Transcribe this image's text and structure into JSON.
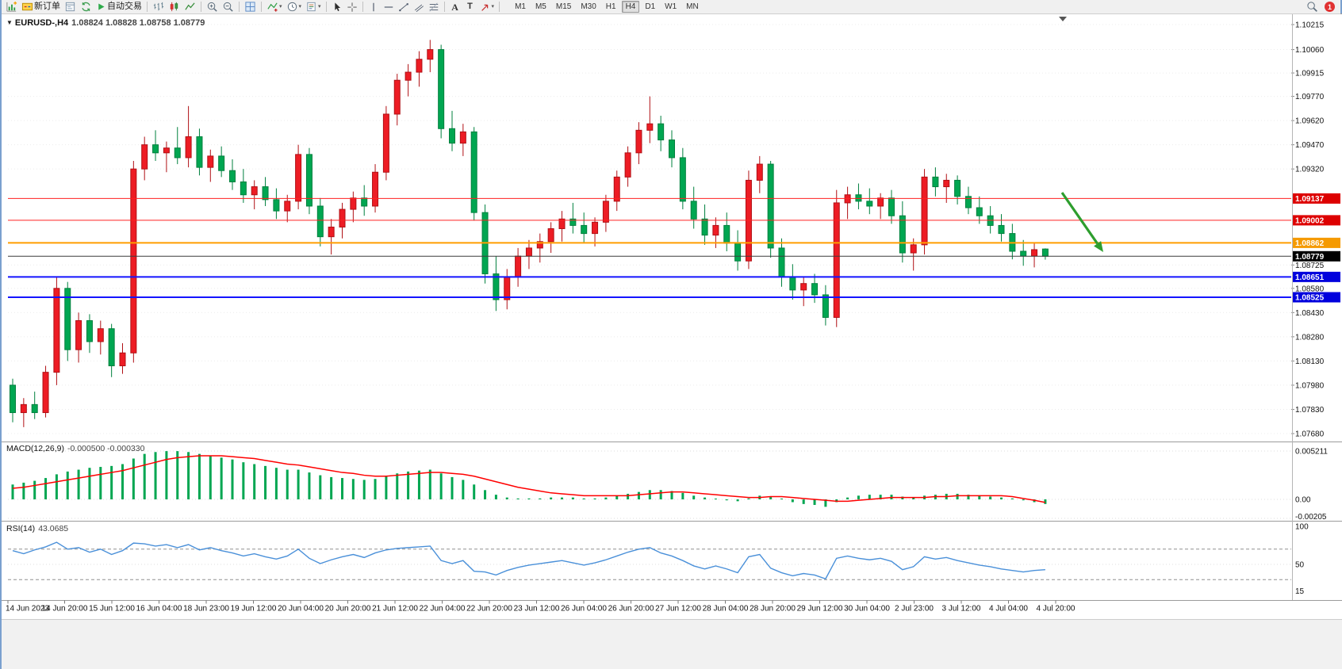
{
  "toolbar": {
    "new_order_label": "新订单",
    "autotrading_label": "自动交易",
    "timeframes": [
      "M1",
      "M5",
      "M15",
      "M30",
      "H1",
      "H4",
      "D1",
      "W1",
      "MN"
    ],
    "active_timeframe": "H4",
    "notification_count": "1"
  },
  "chart": {
    "symbol_title": "EURUSD-,H4",
    "ohlc_text": "1.08824 1.08828 1.08758 1.08779",
    "macd_label": "MACD(12,26,9)",
    "macd_values": "-0.000500 -0.000330",
    "rsi_label": "RSI(14)",
    "rsi_value": "43.0685"
  },
  "chart_data": {
    "type": "candlestick",
    "symbol": "EURUSD",
    "timeframe": "H4",
    "up_color": "#ed1c24",
    "up_border": "#b01015",
    "down_color": "#00a651",
    "down_border": "#00803e",
    "price_axis": {
      "range_top": 1.10215,
      "range_bottom": 1.0768,
      "ticks": [
        "1.10215",
        "1.10060",
        "1.09915",
        "1.09770",
        "1.09620",
        "1.09470",
        "1.09320",
        "1.08725",
        "1.08580",
        "1.08430",
        "1.08280",
        "1.08130",
        "1.07980",
        "1.07830",
        "1.07680"
      ]
    },
    "time_axis": [
      "14 Jun 2023",
      "14 Jun 20:00",
      "15 Jun 12:00",
      "16 Jun 04:00",
      "18 Jun 23:00",
      "19 Jun 12:00",
      "20 Jun 04:00",
      "20 Jun 20:00",
      "21 Jun 12:00",
      "22 Jun 04:00",
      "22 Jun 20:00",
      "23 Jun 12:00",
      "26 Jun 04:00",
      "26 Jun 20:00",
      "27 Jun 12:00",
      "28 Jun 04:00",
      "28 Jun 20:00",
      "29 Jun 12:00",
      "30 Jun 04:00",
      "2 Jul 23:00",
      "3 Jul 12:00",
      "4 Jul 04:00",
      "4 Jul 20:00"
    ],
    "candles": [
      [
        1.0798,
        1.0802,
        1.0775,
        1.0781
      ],
      [
        1.0781,
        1.079,
        1.0772,
        1.0786
      ],
      [
        1.0786,
        1.0794,
        1.0777,
        1.0781
      ],
      [
        1.0781,
        1.081,
        1.0778,
        1.0806
      ],
      [
        1.0806,
        1.0865,
        1.0798,
        1.0858
      ],
      [
        1.0858,
        1.0862,
        1.0813,
        1.082
      ],
      [
        1.082,
        1.0843,
        1.0812,
        1.0838
      ],
      [
        1.0838,
        1.0842,
        1.0818,
        1.0825
      ],
      [
        1.0825,
        1.0838,
        1.0817,
        1.0833
      ],
      [
        1.0833,
        1.0836,
        1.0803,
        1.081
      ],
      [
        1.081,
        1.0824,
        1.0805,
        1.0818
      ],
      [
        1.0818,
        1.0937,
        1.0812,
        1.0932
      ],
      [
        1.0932,
        1.0952,
        1.0925,
        1.0947
      ],
      [
        1.0947,
        1.0956,
        1.0937,
        1.0942
      ],
      [
        1.0942,
        1.0949,
        1.093,
        1.0945
      ],
      [
        1.0945,
        1.0958,
        1.0935,
        1.0939
      ],
      [
        1.0939,
        1.0971,
        1.0933,
        1.0952
      ],
      [
        1.0952,
        1.0957,
        1.0928,
        1.0933
      ],
      [
        1.0933,
        1.0944,
        1.0924,
        1.094
      ],
      [
        1.094,
        1.0946,
        1.0927,
        1.0931
      ],
      [
        1.0931,
        1.0938,
        1.0919,
        1.0924
      ],
      [
        1.0924,
        1.0932,
        1.0911,
        1.0916
      ],
      [
        1.0916,
        1.0925,
        1.0907,
        1.0921
      ],
      [
        1.0921,
        1.0927,
        1.0909,
        1.0913
      ],
      [
        1.0913,
        1.092,
        1.0901,
        1.0906
      ],
      [
        1.0906,
        1.0916,
        1.0899,
        1.0912
      ],
      [
        1.0912,
        1.0947,
        1.0907,
        1.0941
      ],
      [
        1.0941,
        1.0945,
        1.0904,
        1.0909
      ],
      [
        1.0909,
        1.0914,
        1.0884,
        1.089
      ],
      [
        1.089,
        1.0901,
        1.0879,
        1.0896
      ],
      [
        1.0896,
        1.0911,
        1.0889,
        1.0907
      ],
      [
        1.0907,
        1.0918,
        1.0899,
        1.0914
      ],
      [
        1.0914,
        1.0922,
        1.0903,
        1.0909
      ],
      [
        1.0909,
        1.0935,
        1.0905,
        1.093
      ],
      [
        1.093,
        1.0971,
        1.0925,
        1.0966
      ],
      [
        1.0966,
        1.0991,
        1.0959,
        1.0987
      ],
      [
        1.0987,
        1.0997,
        1.0977,
        1.0992
      ],
      [
        1.0992,
        1.1005,
        1.0983,
        1.1
      ],
      [
        1.1,
        1.1012,
        1.0992,
        1.1006
      ],
      [
        1.1006,
        1.1009,
        1.0951,
        1.0957
      ],
      [
        1.0957,
        1.0968,
        1.0943,
        1.0948
      ],
      [
        1.0948,
        1.096,
        1.094,
        1.0955
      ],
      [
        1.0955,
        1.0958,
        1.09,
        1.0905
      ],
      [
        1.0905,
        1.091,
        1.0861,
        1.0867
      ],
      [
        1.0867,
        1.0878,
        1.0844,
        1.0851
      ],
      [
        1.0851,
        1.087,
        1.0845,
        1.0865
      ],
      [
        1.0865,
        1.0883,
        1.0859,
        1.0878
      ],
      [
        1.0878,
        1.0888,
        1.087,
        1.0883
      ],
      [
        1.0883,
        1.0892,
        1.0874,
        1.0887
      ],
      [
        1.0887,
        1.0899,
        1.088,
        1.0895
      ],
      [
        1.0895,
        1.0906,
        1.0887,
        1.0901
      ],
      [
        1.0901,
        1.0911,
        1.0892,
        1.0897
      ],
      [
        1.0897,
        1.0905,
        1.0886,
        1.0892
      ],
      [
        1.0892,
        1.0902,
        1.0884,
        1.0899
      ],
      [
        1.0899,
        1.0916,
        1.0893,
        1.0912
      ],
      [
        1.0912,
        1.0931,
        1.0906,
        1.0927
      ],
      [
        1.0927,
        1.0946,
        1.0921,
        1.0942
      ],
      [
        1.0942,
        1.0961,
        1.0935,
        1.0956
      ],
      [
        1.0956,
        1.0977,
        1.0948,
        1.096
      ],
      [
        1.096,
        1.0965,
        1.0943,
        1.095
      ],
      [
        1.095,
        1.0956,
        1.0933,
        1.0939
      ],
      [
        1.0939,
        1.0945,
        1.0907,
        1.0912
      ],
      [
        1.0912,
        1.0921,
        1.0895,
        1.0901
      ],
      [
        1.0901,
        1.091,
        1.0885,
        1.0891
      ],
      [
        1.0891,
        1.0902,
        1.0883,
        1.0897
      ],
      [
        1.0897,
        1.0905,
        1.0881,
        1.0886
      ],
      [
        1.0886,
        1.0894,
        1.0869,
        1.0875
      ],
      [
        1.0875,
        1.0931,
        1.087,
        1.0925
      ],
      [
        1.0925,
        1.094,
        1.0917,
        1.0935
      ],
      [
        1.0935,
        1.0937,
        1.0877,
        1.0883
      ],
      [
        1.0883,
        1.0889,
        1.0859,
        1.0865
      ],
      [
        1.0865,
        1.0873,
        1.0851,
        1.0857
      ],
      [
        1.0857,
        1.0865,
        1.0847,
        1.0861
      ],
      [
        1.0861,
        1.0867,
        1.0849,
        1.0854
      ],
      [
        1.0854,
        1.086,
        1.0835,
        1.084
      ],
      [
        1.084,
        1.0919,
        1.0834,
        1.0911
      ],
      [
        1.0911,
        1.0921,
        1.0901,
        1.0916
      ],
      [
        1.0916,
        1.0923,
        1.0907,
        1.0912
      ],
      [
        1.0912,
        1.092,
        1.0904,
        1.0909
      ],
      [
        1.0909,
        1.0917,
        1.0901,
        1.0914
      ],
      [
        1.0914,
        1.0919,
        1.0898,
        1.0903
      ],
      [
        1.0903,
        1.0912,
        1.0874,
        1.088
      ],
      [
        1.088,
        1.0889,
        1.0869,
        1.0885
      ],
      [
        1.0885,
        1.0932,
        1.0879,
        1.0927
      ],
      [
        1.0927,
        1.0933,
        1.0915,
        1.0921
      ],
      [
        1.0921,
        1.0929,
        1.0911,
        1.0925
      ],
      [
        1.0925,
        1.0928,
        1.091,
        1.0915
      ],
      [
        1.0915,
        1.0921,
        1.0904,
        1.0908
      ],
      [
        1.0908,
        1.0915,
        1.0898,
        1.0903
      ],
      [
        1.0903,
        1.0909,
        1.0892,
        1.0897
      ],
      [
        1.0897,
        1.0904,
        1.0887,
        1.0892
      ],
      [
        1.0892,
        1.0898,
        1.0876,
        1.0881
      ],
      [
        1.0881,
        1.0888,
        1.0872,
        1.0878
      ],
      [
        1.0878,
        1.0886,
        1.0871,
        1.0882
      ],
      [
        1.08824,
        1.08828,
        1.08758,
        1.08779
      ]
    ],
    "levels": [
      {
        "price": 1.09137,
        "label": "1.09137",
        "color": "#ff2020",
        "bg": "#dd0000",
        "width": 1
      },
      {
        "price": 1.09002,
        "label": "1.09002",
        "color": "#ff2020",
        "bg": "#dd0000",
        "width": 1
      },
      {
        "price": 1.08862,
        "label": "1.08862",
        "color": "#ff9d00",
        "bg": "#f59a00",
        "width": 2
      },
      {
        "price": 1.08651,
        "label": "1.08651",
        "color": "#1414ff",
        "bg": "#0000dd",
        "width": 2
      },
      {
        "price": 1.08525,
        "label": "1.08525",
        "color": "#1414ff",
        "bg": "#0000dd",
        "width": 2
      }
    ],
    "last_price": {
      "value": 1.08779,
      "label": "1.08779",
      "bg": "#000000",
      "line_color": "#3c3c3c"
    },
    "trend_arrow": {
      "from": [
        1337,
        243
      ],
      "to": [
        1389,
        318
      ],
      "color": "#2e9e2e"
    },
    "macd": {
      "hist_color": "#00a651",
      "signal_color": "#ff0000",
      "scale": [
        {
          "v": 0.005211,
          "label": "0.005211"
        },
        {
          "v": 0,
          "label": "0.00"
        },
        {
          "v": -0.00205,
          "label": "-0.00205"
        }
      ],
      "histogram": [
        0.0016,
        0.0018,
        0.002,
        0.0023,
        0.0027,
        0.003,
        0.0032,
        0.0034,
        0.0035,
        0.0036,
        0.0038,
        0.0044,
        0.0049,
        0.0051,
        0.0052,
        0.0052,
        0.0051,
        0.0049,
        0.0047,
        0.0045,
        0.0043,
        0.004,
        0.0038,
        0.0036,
        0.0034,
        0.0032,
        0.0032,
        0.0029,
        0.0026,
        0.0024,
        0.0023,
        0.0022,
        0.0021,
        0.0022,
        0.0025,
        0.0028,
        0.003,
        0.0031,
        0.0032,
        0.0028,
        0.0024,
        0.0021,
        0.0016,
        0.001,
        0.0005,
        0.0002,
        0.0001,
        0.0001,
        0.0001,
        0.0002,
        0.0002,
        0.0002,
        0.0001,
        0.0001,
        0.0002,
        0.0004,
        0.0006,
        0.0008,
        0.001,
        0.001,
        0.0009,
        0.0007,
        0.0004,
        0.0002,
        0.0,
        -0.0001,
        -0.0002,
        0.0001,
        0.0004,
        0.0003,
        0.0,
        -0.0003,
        -0.0005,
        -0.0006,
        -0.0008,
        -0.0003,
        0.0002,
        0.0004,
        0.0005,
        0.0005,
        0.0005,
        0.0003,
        0.0002,
        0.0004,
        0.0005,
        0.0006,
        0.0006,
        0.0005,
        0.0004,
        0.0003,
        0.0002,
        0.0001,
        -0.0001,
        -0.0003,
        -0.0005
      ],
      "signal": [
        0.0012,
        0.0013,
        0.0015,
        0.0017,
        0.0019,
        0.0021,
        0.0023,
        0.0025,
        0.0027,
        0.0029,
        0.0031,
        0.0034,
        0.0037,
        0.004,
        0.0043,
        0.0045,
        0.0046,
        0.0047,
        0.0047,
        0.0047,
        0.0046,
        0.0045,
        0.0044,
        0.0042,
        0.004,
        0.0038,
        0.0037,
        0.0035,
        0.0033,
        0.0031,
        0.0029,
        0.0028,
        0.0026,
        0.0025,
        0.0025,
        0.0026,
        0.0027,
        0.0028,
        0.0029,
        0.0029,
        0.0028,
        0.0027,
        0.0025,
        0.0022,
        0.0019,
        0.0016,
        0.0013,
        0.0011,
        0.0009,
        0.0007,
        0.0006,
        0.0005,
        0.0004,
        0.0004,
        0.0004,
        0.0004,
        0.0004,
        0.0005,
        0.0006,
        0.0007,
        0.0008,
        0.0008,
        0.0007,
        0.0006,
        0.0005,
        0.0004,
        0.0003,
        0.0002,
        0.0002,
        0.0003,
        0.0003,
        0.0002,
        0.0001,
        0.0,
        -0.0001,
        -0.0002,
        -0.0002,
        -0.0001,
        0.0,
        0.0001,
        0.0002,
        0.0002,
        0.0002,
        0.0002,
        0.0003,
        0.0003,
        0.0004,
        0.0004,
        0.0004,
        0.0004,
        0.0004,
        0.0003,
        0.0001,
        -0.0001,
        -0.00033
      ]
    },
    "rsi": {
      "line_color": "#4a90d9",
      "levels": [
        70,
        50,
        30
      ],
      "scale": [
        {
          "v": 100,
          "label": "100"
        },
        {
          "v": 50,
          "label": "50"
        },
        {
          "v": 15,
          "label": "15"
        }
      ],
      "values": [
        68,
        64,
        69,
        73,
        79,
        70,
        72,
        66,
        70,
        63,
        68,
        78,
        77,
        74,
        76,
        72,
        76,
        69,
        72,
        68,
        65,
        61,
        64,
        60,
        57,
        61,
        70,
        58,
        51,
        56,
        60,
        63,
        59,
        65,
        69,
        71,
        72,
        73,
        74,
        55,
        51,
        55,
        41,
        40,
        36,
        42,
        46,
        49,
        51,
        53,
        55,
        52,
        49,
        52,
        56,
        61,
        66,
        70,
        72,
        65,
        61,
        55,
        48,
        44,
        48,
        44,
        39,
        60,
        63,
        45,
        39,
        35,
        38,
        36,
        31,
        58,
        61,
        58,
        56,
        58,
        54,
        43,
        47,
        60,
        57,
        59,
        55,
        52,
        49,
        47,
        44,
        42,
        40,
        42,
        43.0685
      ]
    }
  }
}
